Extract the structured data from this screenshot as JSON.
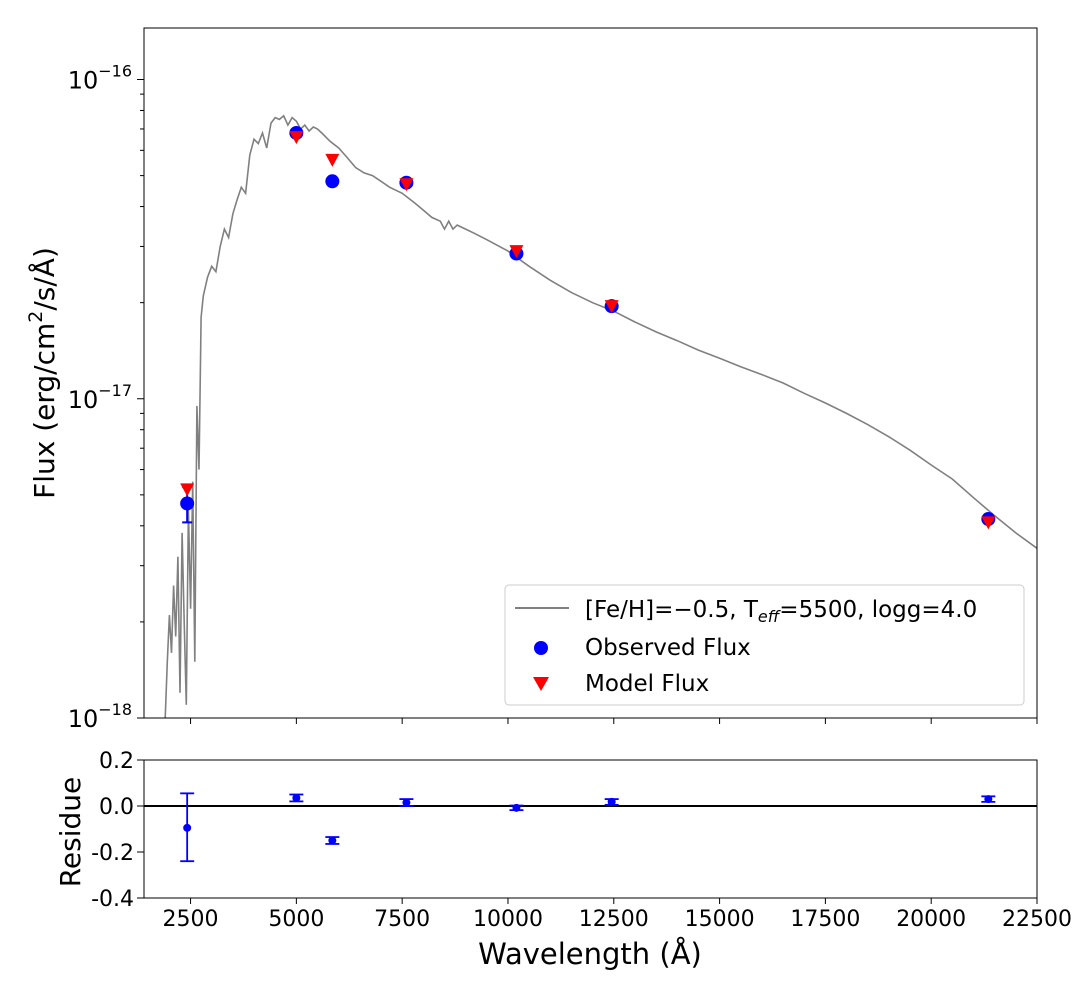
{
  "chart_data": [
    {
      "type": "scatter",
      "title": "",
      "xlabel": "Wavelength (Å)",
      "ylabel_parts": {
        "pre": "Flux (erg/cm",
        "sup": "2",
        "post": "/s/Å)"
      },
      "yscale": "log",
      "xlim": [
        1400,
        22500
      ],
      "ylim": [
        1e-18,
        1.45e-16
      ],
      "y_ticks": [
        {
          "value": 1e-16,
          "base": "10",
          "exp": "−16"
        },
        {
          "value": 1e-17,
          "base": "10",
          "exp": "−17"
        },
        {
          "value": 1e-18,
          "base": "10",
          "exp": "−18"
        }
      ],
      "x_ticks": [
        2500,
        5000,
        7500,
        10000,
        12500,
        15000,
        17500,
        20000,
        22500
      ],
      "legend_position": "lower-right",
      "model_spectrum": {
        "legend_parts": {
          "pre": "[Fe/H]=−0.5, T",
          "sub": "eff",
          "post": "=5500, logg=4.0"
        },
        "color": "#808080",
        "x": [
          1900,
          1950,
          2000,
          2050,
          2100,
          2150,
          2200,
          2250,
          2300,
          2350,
          2400,
          2450,
          2500,
          2550,
          2600,
          2650,
          2700,
          2750,
          2800,
          2900,
          3000,
          3100,
          3200,
          3300,
          3400,
          3500,
          3600,
          3700,
          3800,
          3900,
          4000,
          4100,
          4200,
          4300,
          4400,
          4500,
          4600,
          4700,
          4800,
          4900,
          5000,
          5100,
          5200,
          5300,
          5400,
          5500,
          5600,
          5800,
          6000,
          6200,
          6400,
          6600,
          6800,
          7000,
          7200,
          7500,
          7800,
          8000,
          8200,
          8400,
          8500,
          8600,
          8700,
          8800,
          9000,
          9200,
          9500,
          10000,
          10500,
          11000,
          11500,
          12000,
          12500,
          13000,
          13500,
          14000,
          14500,
          15000,
          15500,
          16000,
          16500,
          17000,
          17500,
          18000,
          18500,
          19000,
          19500,
          20000,
          20500,
          21000,
          21500,
          22000,
          22500
        ],
        "y": [
          1e-18,
          1.5e-18,
          2.1e-18,
          1.6e-18,
          2.6e-18,
          1.8e-18,
          3.2e-18,
          1.2e-18,
          3.8e-18,
          2e-18,
          1.1e-18,
          4.5e-18,
          2.2e-18,
          5.5e-18,
          1.5e-18,
          9.5e-18,
          6e-18,
          1.8e-17,
          2.1e-17,
          2.4e-17,
          2.6e-17,
          2.5e-17,
          3e-17,
          3.4e-17,
          3.2e-17,
          3.8e-17,
          4.2e-17,
          4.6e-17,
          4.4e-17,
          5.8e-17,
          6.5e-17,
          6.3e-17,
          6.8e-17,
          6.1e-17,
          7.3e-17,
          7.6e-17,
          7.5e-17,
          7.7e-17,
          7.2e-17,
          7.6e-17,
          7.4e-17,
          7e-17,
          7.2e-17,
          6.9e-17,
          7.1e-17,
          7e-17,
          6.8e-17,
          6.4e-17,
          6.1e-17,
          5.7e-17,
          5.3e-17,
          5.1e-17,
          5e-17,
          4.8e-17,
          4.6e-17,
          4.4e-17,
          4.1e-17,
          3.9e-17,
          3.7e-17,
          3.6e-17,
          3.4e-17,
          3.6e-17,
          3.4e-17,
          3.5e-17,
          3.4e-17,
          3.3e-17,
          3.15e-17,
          2.9e-17,
          2.6e-17,
          2.35e-17,
          2.15e-17,
          2e-17,
          1.88e-17,
          1.74e-17,
          1.62e-17,
          1.52e-17,
          1.42e-17,
          1.34e-17,
          1.26e-17,
          1.19e-17,
          1.12e-17,
          1.04e-17,
          9.7e-18,
          9e-18,
          8.3e-18,
          7.6e-18,
          6.9e-18,
          6.2e-18,
          5.6e-18,
          4.9e-18,
          4.3e-18,
          3.8e-18,
          3.4e-18
        ]
      },
      "observed": {
        "name": "Observed Flux",
        "color": "#0000ff",
        "x": [
          2420,
          5000,
          5850,
          7600,
          10200,
          12450,
          21350
        ],
        "y": [
          4.7e-18,
          6.8e-17,
          4.8e-17,
          4.75e-17,
          2.85e-17,
          1.95e-17,
          4.2e-18
        ],
        "yerr_low": [
          4.1e-18,
          null,
          null,
          null,
          null,
          null,
          null
        ],
        "yerr_high": [
          5.3e-18,
          null,
          null,
          null,
          null,
          null,
          null
        ]
      },
      "model_points": {
        "name": "Model Flux",
        "color": "#ff0000",
        "x": [
          2420,
          5000,
          5850,
          7600,
          10200,
          12450,
          21350
        ],
        "y": [
          5.2e-18,
          6.6e-17,
          5.6e-17,
          4.7e-17,
          2.9e-17,
          1.95e-17,
          4.1e-18
        ]
      }
    },
    {
      "type": "scatter",
      "xlabel": "Wavelength (Å)",
      "ylabel": "Residue",
      "xlim": [
        1400,
        22500
      ],
      "ylim": [
        -0.4,
        0.2
      ],
      "y_ticks": [
        "0.2",
        "0.0",
        "-0.2",
        "-0.4"
      ],
      "y_tick_values": [
        0.2,
        0.0,
        -0.2,
        -0.4
      ],
      "x_ticks": [
        2500,
        5000,
        7500,
        10000,
        12500,
        15000,
        17500,
        20000,
        22500
      ],
      "reference_line_y": 0.0,
      "residuals": {
        "color": "#0000ff",
        "x": [
          2420,
          5000,
          5850,
          7600,
          10200,
          12450,
          21350
        ],
        "y": [
          -0.095,
          0.035,
          -0.15,
          0.015,
          -0.008,
          0.018,
          0.03
        ],
        "err_low": [
          -0.24,
          0.02,
          -0.165,
          0.0,
          -0.018,
          0.005,
          0.018
        ],
        "err_high": [
          0.055,
          0.05,
          -0.135,
          0.03,
          0.002,
          0.03,
          0.042
        ]
      }
    }
  ]
}
